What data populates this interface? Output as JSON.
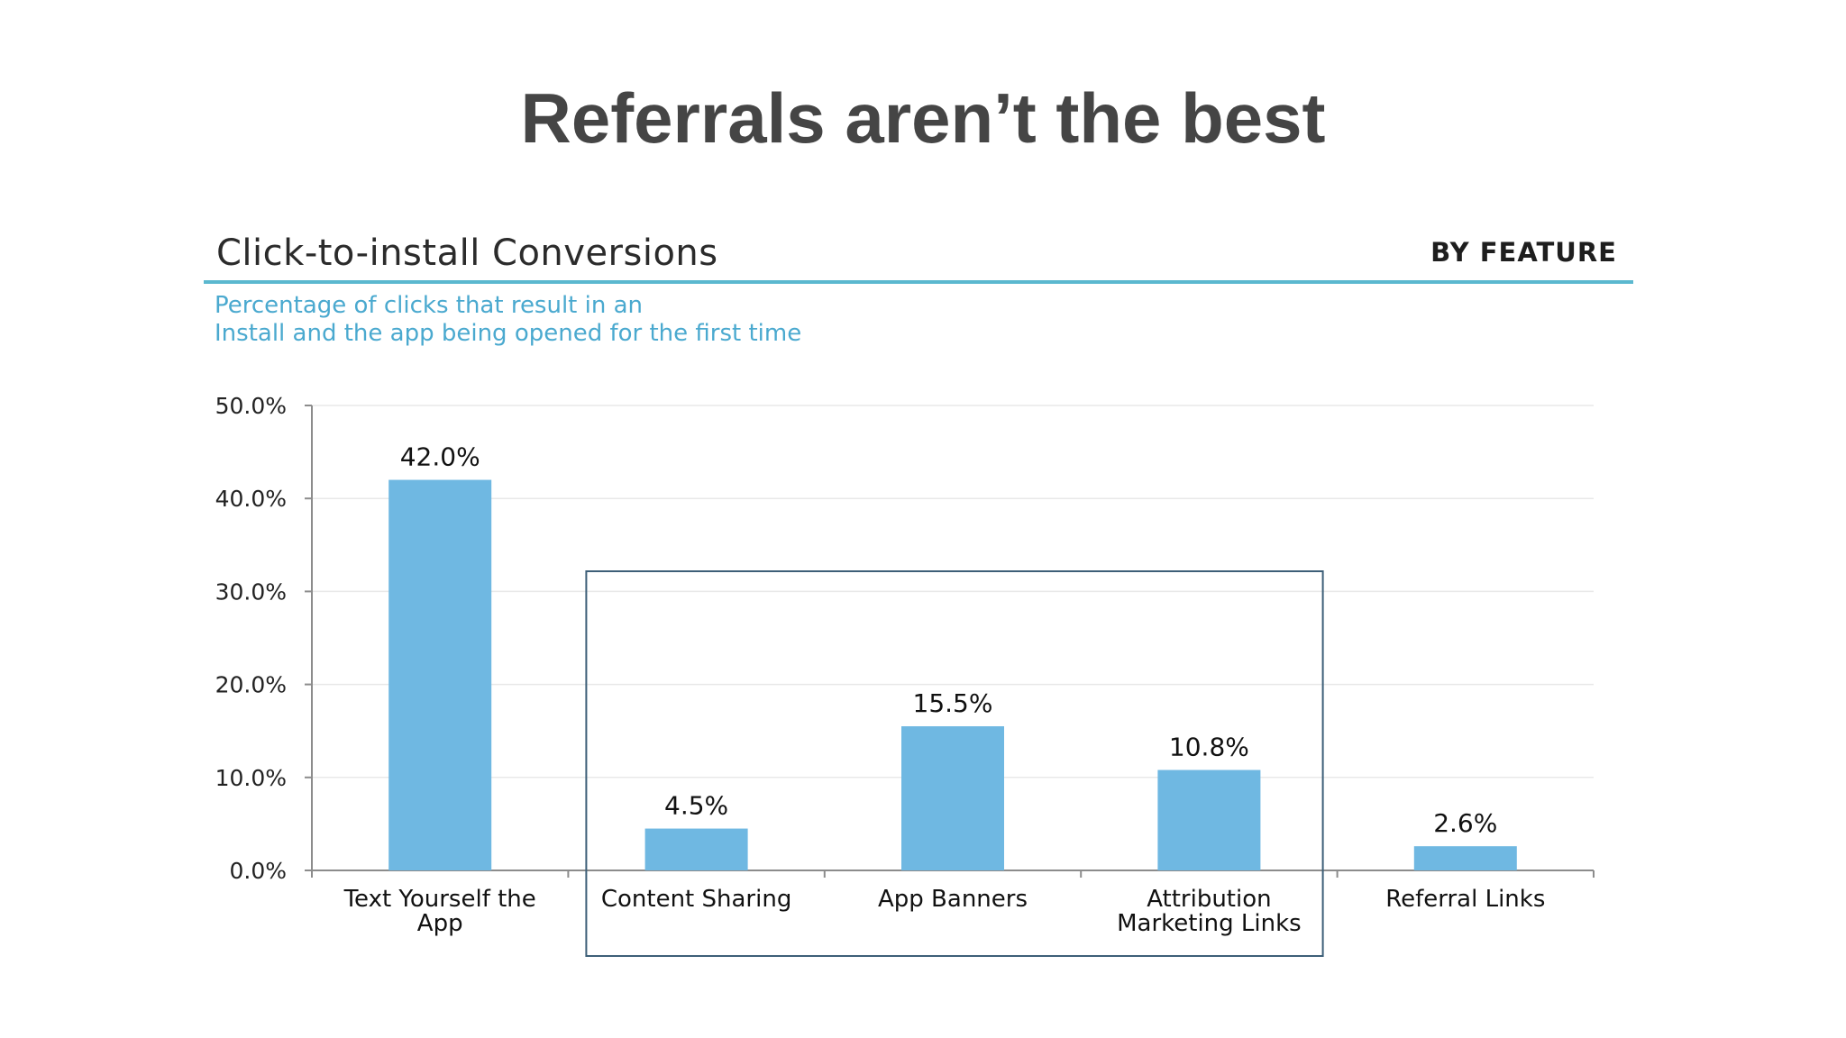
{
  "slide": {
    "title": "Referrals aren’t the best"
  },
  "chart_data": {
    "type": "bar",
    "title": "Click-to-install Conversions",
    "tag": "BY FEATURE",
    "subtitle": [
      "Percentage of clicks that result in an",
      "Install and the app being opened for the first time"
    ],
    "categories": [
      [
        "Text Yourself the",
        "App"
      ],
      [
        "Content Sharing"
      ],
      [
        "App Banners"
      ],
      [
        "Attribution",
        "Marketing Links"
      ],
      [
        "Referral Links"
      ]
    ],
    "values": [
      42.0,
      4.5,
      15.5,
      10.8,
      2.6
    ],
    "value_labels": [
      "42.0%",
      "4.5%",
      "15.5%",
      "10.8%",
      "2.6%"
    ],
    "yticks": [
      0,
      10,
      20,
      30,
      40,
      50
    ],
    "ytick_labels": [
      "0.0%",
      "10.0%",
      "20.0%",
      "30.0%",
      "40.0%",
      "50.0%"
    ],
    "ylim": [
      0,
      50
    ],
    "grid": true,
    "highlight": {
      "from_category": "Content Sharing",
      "to_category": "Attribution Marketing Links"
    },
    "colors": {
      "bar": "#6fb8e2",
      "grid": "#e8e8e8",
      "axis": "#8c8c8c",
      "highlight_box": "#3d5f78",
      "accent_rule": "#5bb8cf",
      "subtitle": "#4aa9cf"
    }
  }
}
